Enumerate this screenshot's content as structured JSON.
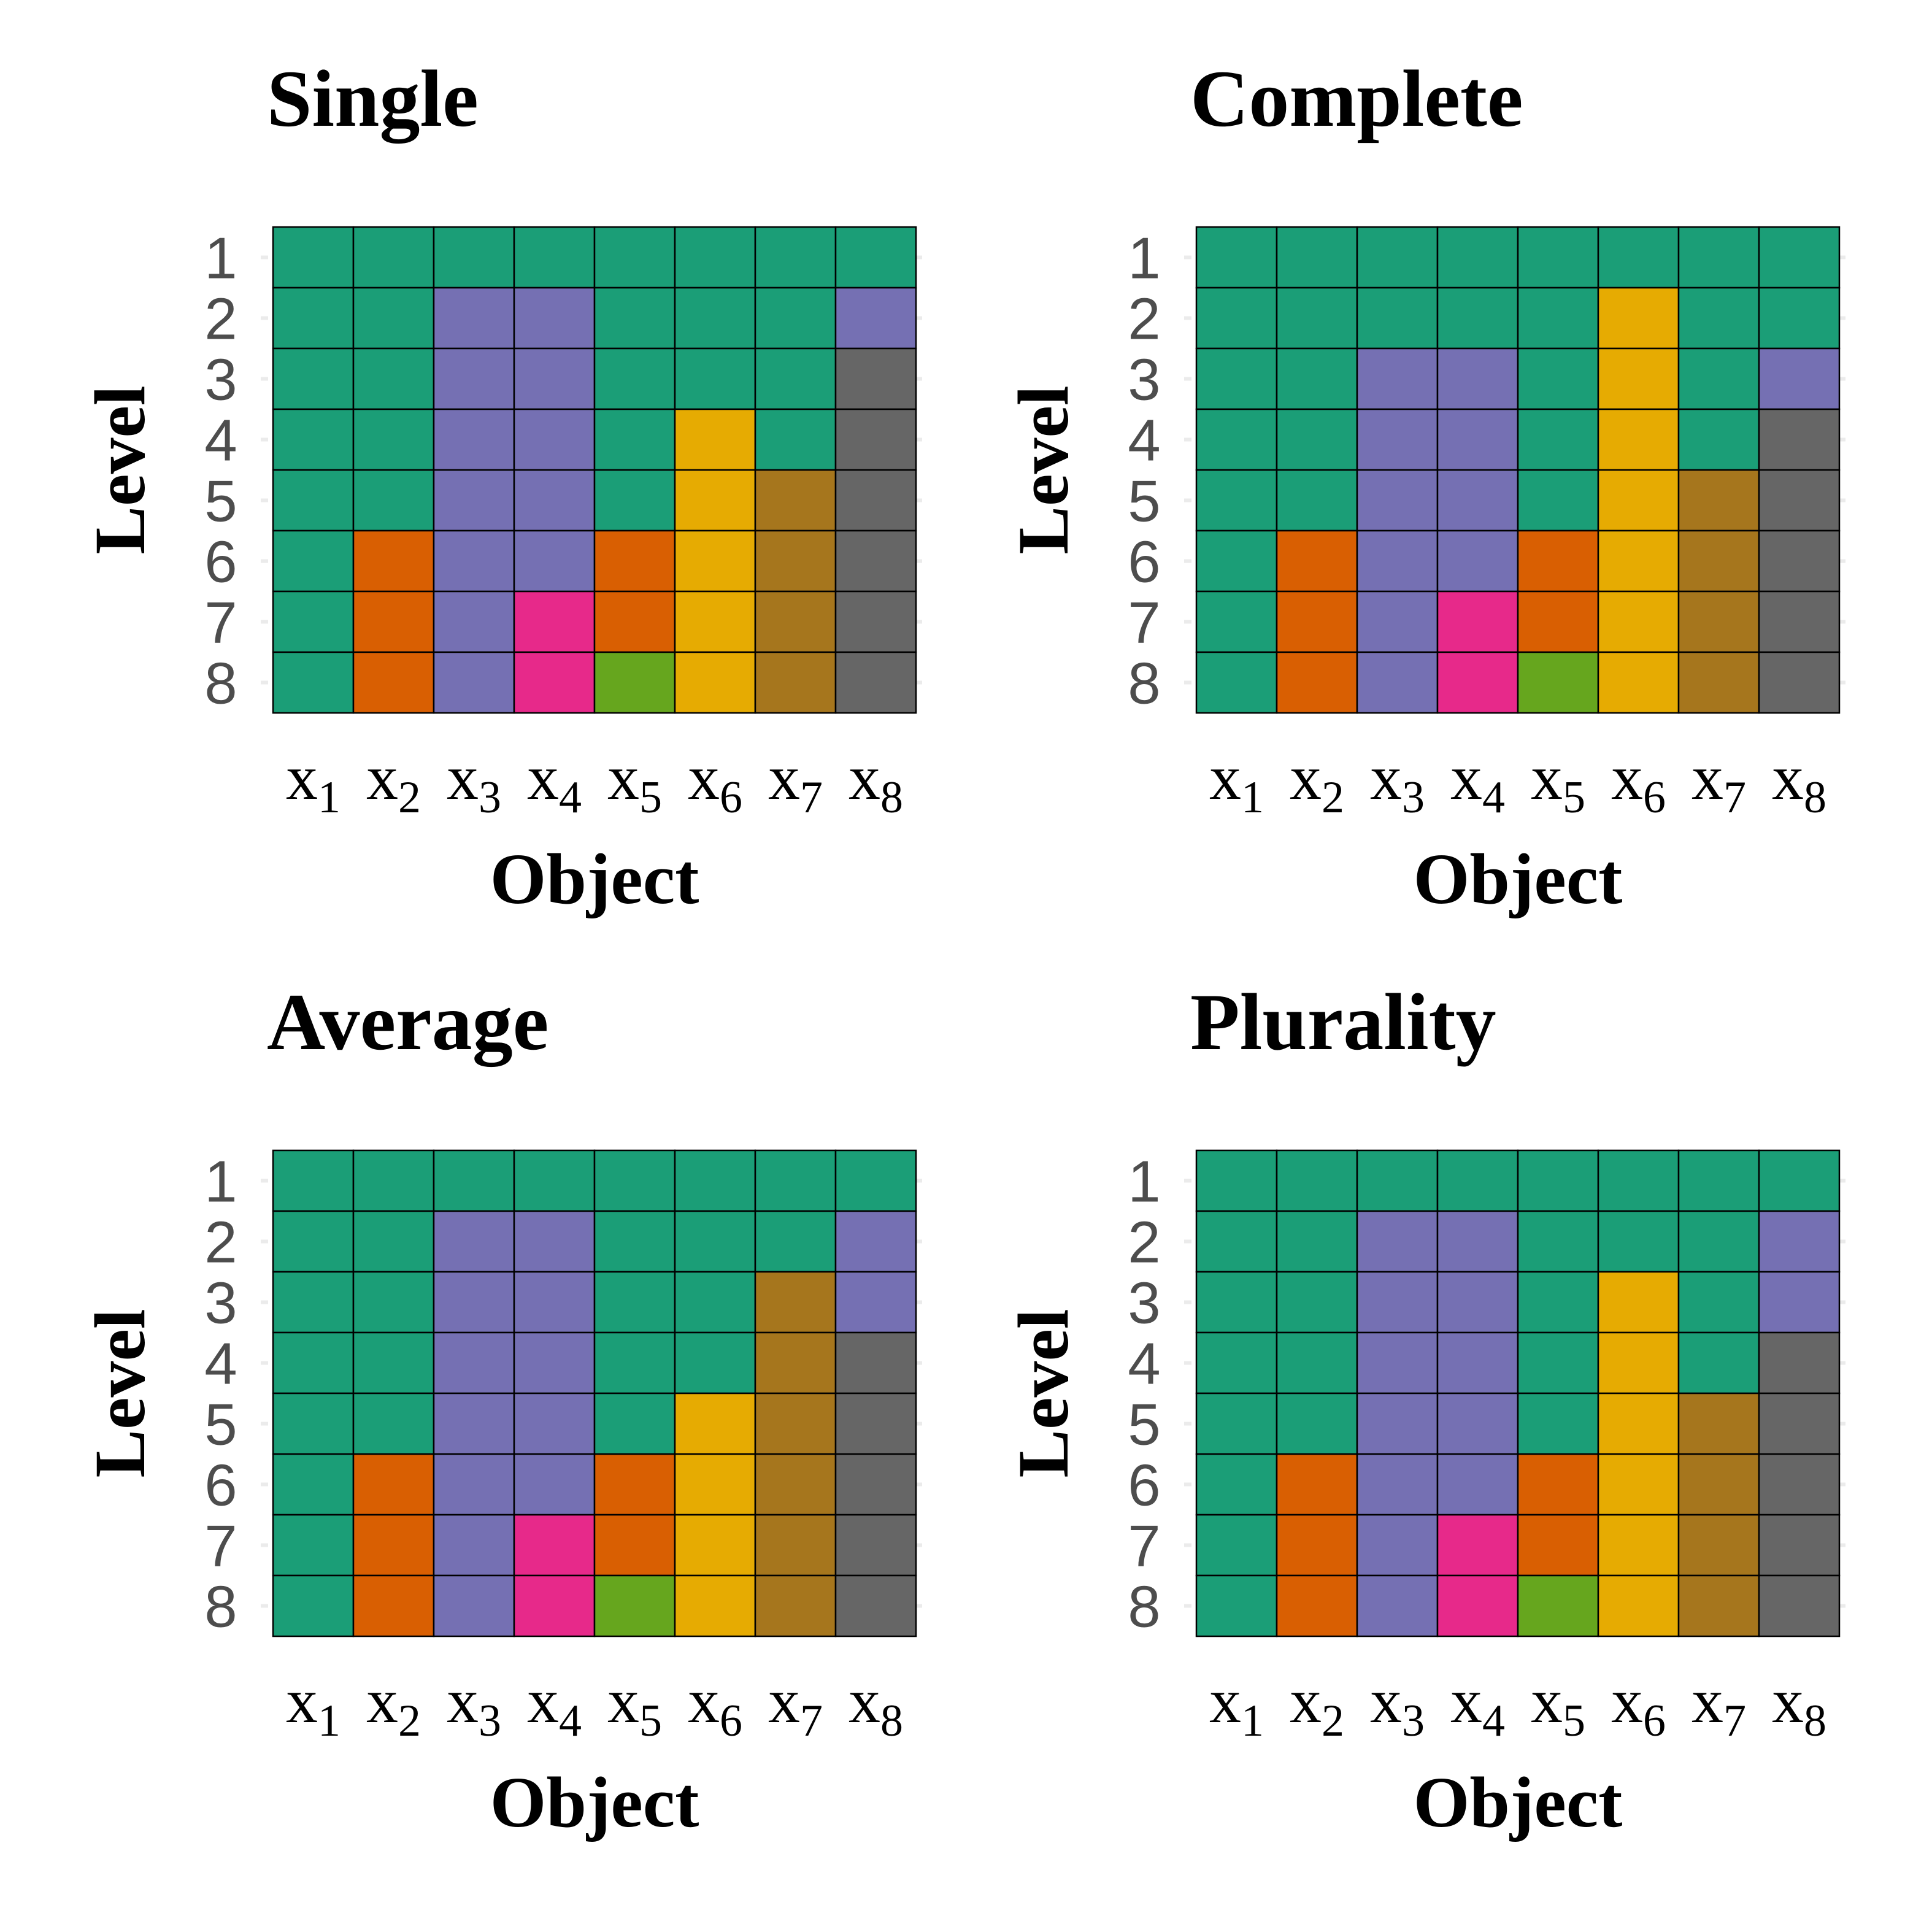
{
  "chart_data": [
    {
      "type": "heatmap",
      "title": "Single",
      "xlabel": "Object",
      "ylabel": "Level",
      "x": [
        "x1",
        "x2",
        "x3",
        "x4",
        "x5",
        "x6",
        "x7",
        "x8"
      ],
      "y": [
        1,
        2,
        3,
        4,
        5,
        6,
        7,
        8
      ],
      "cells": [
        [
          0,
          0,
          0,
          0,
          0,
          0,
          0,
          0
        ],
        [
          0,
          0,
          1,
          1,
          0,
          0,
          0,
          1
        ],
        [
          0,
          0,
          1,
          1,
          0,
          0,
          0,
          2
        ],
        [
          0,
          0,
          1,
          1,
          0,
          3,
          0,
          2
        ],
        [
          0,
          0,
          1,
          1,
          0,
          3,
          4,
          2
        ],
        [
          0,
          5,
          1,
          1,
          5,
          3,
          4,
          2
        ],
        [
          0,
          5,
          1,
          6,
          5,
          3,
          4,
          2
        ],
        [
          0,
          5,
          1,
          6,
          7,
          3,
          4,
          2
        ]
      ]
    },
    {
      "type": "heatmap",
      "title": "Complete",
      "xlabel": "Object",
      "ylabel": "Level",
      "x": [
        "x1",
        "x2",
        "x3",
        "x4",
        "x5",
        "x6",
        "x7",
        "x8"
      ],
      "y": [
        1,
        2,
        3,
        4,
        5,
        6,
        7,
        8
      ],
      "cells": [
        [
          0,
          0,
          0,
          0,
          0,
          0,
          0,
          0
        ],
        [
          0,
          0,
          0,
          0,
          0,
          3,
          0,
          0
        ],
        [
          0,
          0,
          1,
          1,
          0,
          3,
          0,
          1
        ],
        [
          0,
          0,
          1,
          1,
          0,
          3,
          0,
          2
        ],
        [
          0,
          0,
          1,
          1,
          0,
          3,
          4,
          2
        ],
        [
          0,
          5,
          1,
          1,
          5,
          3,
          4,
          2
        ],
        [
          0,
          5,
          1,
          6,
          5,
          3,
          4,
          2
        ],
        [
          0,
          5,
          1,
          6,
          7,
          3,
          4,
          2
        ]
      ]
    },
    {
      "type": "heatmap",
      "title": "Average",
      "xlabel": "Object",
      "ylabel": "Level",
      "x": [
        "x1",
        "x2",
        "x3",
        "x4",
        "x5",
        "x6",
        "x7",
        "x8"
      ],
      "y": [
        1,
        2,
        3,
        4,
        5,
        6,
        7,
        8
      ],
      "cells": [
        [
          0,
          0,
          0,
          0,
          0,
          0,
          0,
          0
        ],
        [
          0,
          0,
          1,
          1,
          0,
          0,
          0,
          1
        ],
        [
          0,
          0,
          1,
          1,
          0,
          0,
          4,
          1
        ],
        [
          0,
          0,
          1,
          1,
          0,
          0,
          4,
          2
        ],
        [
          0,
          0,
          1,
          1,
          0,
          3,
          4,
          2
        ],
        [
          0,
          5,
          1,
          1,
          5,
          3,
          4,
          2
        ],
        [
          0,
          5,
          1,
          6,
          5,
          3,
          4,
          2
        ],
        [
          0,
          5,
          1,
          6,
          7,
          3,
          4,
          2
        ]
      ]
    },
    {
      "type": "heatmap",
      "title": "Plurality",
      "xlabel": "Object",
      "ylabel": "Level",
      "x": [
        "x1",
        "x2",
        "x3",
        "x4",
        "x5",
        "x6",
        "x7",
        "x8"
      ],
      "y": [
        1,
        2,
        3,
        4,
        5,
        6,
        7,
        8
      ],
      "cells": [
        [
          0,
          0,
          0,
          0,
          0,
          0,
          0,
          0
        ],
        [
          0,
          0,
          1,
          1,
          0,
          0,
          0,
          1
        ],
        [
          0,
          0,
          1,
          1,
          0,
          3,
          0,
          1
        ],
        [
          0,
          0,
          1,
          1,
          0,
          3,
          0,
          2
        ],
        [
          0,
          0,
          1,
          1,
          0,
          3,
          4,
          2
        ],
        [
          0,
          5,
          1,
          1,
          5,
          3,
          4,
          2
        ],
        [
          0,
          5,
          1,
          6,
          5,
          3,
          4,
          2
        ],
        [
          0,
          5,
          1,
          6,
          7,
          3,
          4,
          2
        ]
      ]
    }
  ],
  "colors": {
    "palette": [
      "#1b9e77",
      "#7570b3",
      "#666666",
      "#e6ab02",
      "#a6761d",
      "#d95f02",
      "#e7298a",
      "#66a61e"
    ],
    "cell_border": "#000000"
  }
}
